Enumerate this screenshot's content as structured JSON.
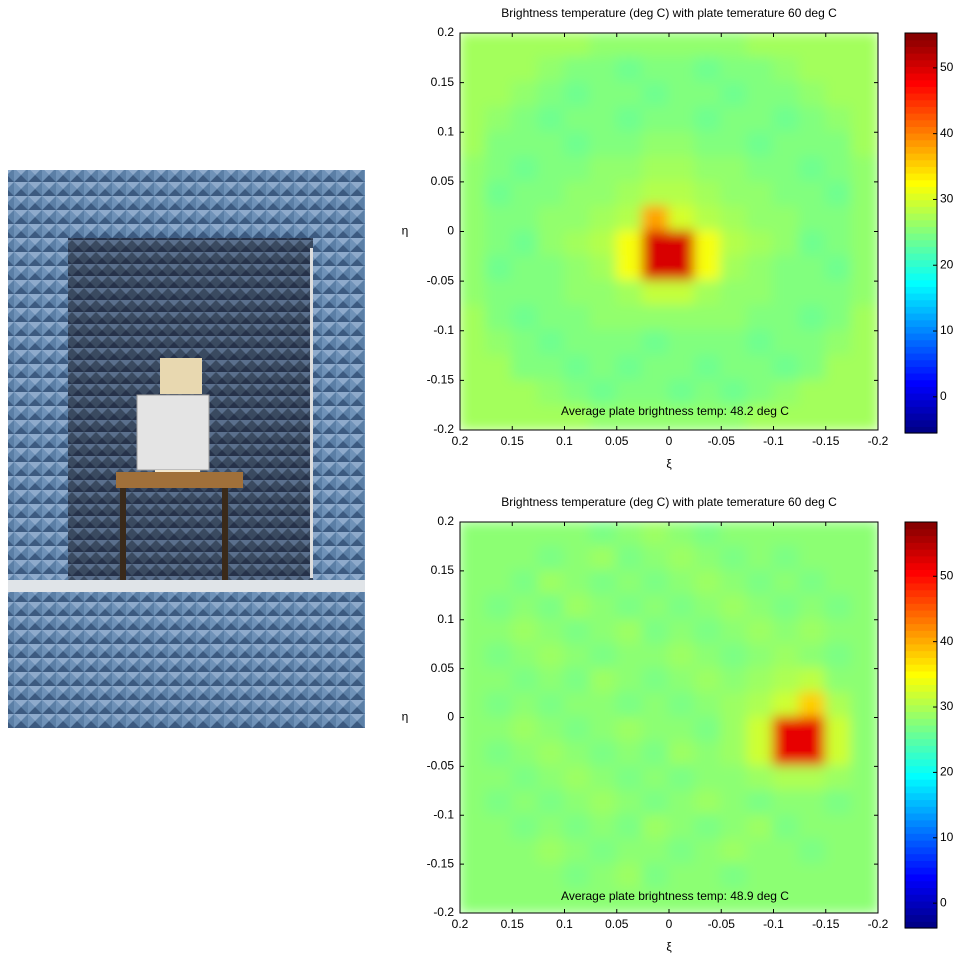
{
  "chart_data": [
    {
      "type": "heatmap",
      "title": "Brightness temperature (deg C) with plate temerature 60 deg C",
      "x_label": "ξ",
      "y_label": "η",
      "annotation": "Average plate brightness temp: 48.2 deg C",
      "xlim": [
        0.2,
        -0.2
      ],
      "ylim": [
        -0.2,
        0.2
      ],
      "xticks": [
        0.2,
        0.15,
        0.1,
        0.05,
        0,
        -0.05,
        -0.1,
        -0.15,
        -0.2
      ],
      "yticks": [
        -0.2,
        -0.15,
        -0.1,
        -0.05,
        0,
        0.05,
        0.1,
        0.15,
        0.2
      ],
      "colormap": "jet",
      "clim": [
        -5.5,
        55.3
      ],
      "cticks": [
        0,
        10,
        20,
        30,
        40,
        50
      ],
      "x": [
        0.1875,
        0.1625,
        0.1375,
        0.1125,
        0.0875,
        0.0625,
        0.0375,
        0.0125,
        -0.0125,
        -0.0375,
        -0.0625,
        -0.0875,
        -0.1125,
        -0.1375,
        -0.1625,
        -0.1875
      ],
      "y": [
        0.1875,
        0.1625,
        0.1375,
        0.1125,
        0.0875,
        0.0625,
        0.0375,
        0.0125,
        -0.0125,
        -0.0375,
        -0.0625,
        -0.0875,
        -0.1125,
        -0.1375,
        -0.1625,
        -0.1875
      ],
      "z": [
        [
          27,
          27,
          27,
          27,
          27,
          26,
          26,
          26,
          26,
          26,
          26,
          27,
          27,
          27,
          27,
          27
        ],
        [
          27,
          27,
          27,
          26,
          25,
          25,
          24,
          25,
          25,
          24,
          25,
          25,
          26,
          27,
          27,
          27
        ],
        [
          27,
          27,
          26,
          25,
          24,
          25,
          25,
          24,
          25,
          25,
          24,
          25,
          25,
          26,
          27,
          27
        ],
        [
          27,
          26,
          25,
          24,
          25,
          25,
          24,
          25,
          25,
          24,
          25,
          25,
          24,
          25,
          26,
          27
        ],
        [
          27,
          25,
          25,
          25,
          24,
          25,
          25,
          26,
          26,
          25,
          25,
          24,
          25,
          25,
          25,
          27
        ],
        [
          26,
          25,
          24,
          25,
          25,
          26,
          26,
          27,
          27,
          26,
          26,
          25,
          25,
          24,
          25,
          26
        ],
        [
          26,
          24,
          25,
          25,
          26,
          26,
          27,
          28,
          28,
          27,
          26,
          26,
          25,
          25,
          24,
          26
        ],
        [
          26,
          25,
          25,
          26,
          26,
          27,
          28,
          38,
          30,
          28,
          27,
          26,
          26,
          25,
          25,
          26
        ],
        [
          26,
          25,
          24,
          26,
          27,
          28,
          32,
          50,
          50,
          32,
          28,
          27,
          26,
          24,
          25,
          26
        ],
        [
          26,
          24,
          25,
          25,
          26,
          27,
          32,
          50,
          50,
          32,
          27,
          26,
          25,
          25,
          24,
          26
        ],
        [
          26,
          25,
          25,
          25,
          26,
          26,
          27,
          29,
          29,
          27,
          26,
          26,
          25,
          25,
          25,
          26
        ],
        [
          27,
          25,
          24,
          25,
          25,
          26,
          26,
          26,
          26,
          26,
          26,
          25,
          25,
          24,
          25,
          27
        ],
        [
          27,
          26,
          25,
          24,
          25,
          25,
          25,
          24,
          25,
          25,
          25,
          24,
          25,
          25,
          26,
          27
        ],
        [
          27,
          27,
          25,
          25,
          24,
          25,
          24,
          25,
          25,
          24,
          25,
          25,
          24,
          25,
          27,
          27
        ],
        [
          27,
          27,
          27,
          26,
          25,
          24,
          25,
          25,
          24,
          25,
          24,
          25,
          26,
          27,
          27,
          27
        ],
        [
          27,
          27,
          27,
          27,
          27,
          26,
          26,
          26,
          26,
          26,
          26,
          27,
          27,
          27,
          27,
          27
        ]
      ]
    },
    {
      "type": "heatmap",
      "title": "Brightness temperature (deg C) with plate temerature 60 deg C",
      "x_label": "ξ",
      "y_label": "η",
      "annotation": "Average plate brightness temp: 48.9 deg C",
      "xlim": [
        0.2,
        -0.2
      ],
      "ylim": [
        -0.2,
        0.2
      ],
      "xticks": [
        0.2,
        0.15,
        0.1,
        0.05,
        0,
        -0.05,
        -0.1,
        -0.15,
        -0.2
      ],
      "yticks": [
        -0.2,
        -0.15,
        -0.1,
        -0.05,
        0,
        0.05,
        0.1,
        0.15,
        0.2
      ],
      "colormap": "jet",
      "clim": [
        -3.8,
        58.3
      ],
      "cticks": [
        0,
        10,
        20,
        30,
        40,
        50
      ],
      "x": [
        0.1875,
        0.1625,
        0.1375,
        0.1125,
        0.0875,
        0.0625,
        0.0375,
        0.0125,
        -0.0125,
        -0.0375,
        -0.0625,
        -0.0875,
        -0.1125,
        -0.1375,
        -0.1625,
        -0.1875
      ],
      "y": [
        0.1875,
        0.1625,
        0.1375,
        0.1125,
        0.0875,
        0.0625,
        0.0375,
        0.0125,
        -0.0125,
        -0.0375,
        -0.0625,
        -0.0875,
        -0.1125,
        -0.1375,
        -0.1625,
        -0.1875
      ],
      "z": [
        [
          28,
          28,
          28,
          28,
          28,
          27,
          28,
          29,
          28,
          27,
          28,
          28,
          28,
          28,
          28,
          28
        ],
        [
          28,
          28,
          28,
          27,
          28,
          29,
          27,
          28,
          29,
          28,
          27,
          28,
          27,
          28,
          28,
          28
        ],
        [
          28,
          28,
          27,
          29,
          28,
          27,
          28,
          27,
          28,
          29,
          28,
          27,
          28,
          27,
          28,
          28
        ],
        [
          28,
          27,
          28,
          27,
          29,
          28,
          27,
          28,
          27,
          28,
          29,
          28,
          27,
          28,
          27,
          28
        ],
        [
          28,
          28,
          29,
          28,
          27,
          28,
          29,
          27,
          28,
          27,
          28,
          29,
          28,
          29,
          28,
          28
        ],
        [
          28,
          27,
          28,
          29,
          28,
          27,
          28,
          28,
          29,
          28,
          27,
          28,
          29,
          28,
          27,
          28
        ],
        [
          28,
          28,
          27,
          28,
          27,
          29,
          28,
          27,
          28,
          29,
          28,
          29,
          30,
          31,
          28,
          28
        ],
        [
          28,
          27,
          28,
          27,
          28,
          28,
          27,
          28,
          27,
          28,
          29,
          30,
          32,
          38,
          30,
          28
        ],
        [
          28,
          28,
          29,
          28,
          27,
          28,
          29,
          28,
          28,
          27,
          29,
          32,
          52,
          52,
          32,
          28
        ],
        [
          28,
          27,
          28,
          29,
          28,
          27,
          28,
          27,
          29,
          28,
          29,
          32,
          52,
          52,
          32,
          28
        ],
        [
          28,
          28,
          27,
          28,
          29,
          28,
          27,
          28,
          27,
          28,
          28,
          29,
          30,
          30,
          29,
          28
        ],
        [
          28,
          27,
          28,
          27,
          28,
          29,
          28,
          27,
          28,
          29,
          28,
          27,
          28,
          28,
          27,
          28
        ],
        [
          28,
          28,
          27,
          28,
          27,
          28,
          27,
          29,
          28,
          27,
          28,
          29,
          27,
          28,
          28,
          28
        ],
        [
          28,
          28,
          28,
          29,
          28,
          27,
          28,
          28,
          27,
          28,
          29,
          28,
          28,
          27,
          28,
          28
        ],
        [
          28,
          28,
          28,
          28,
          27,
          28,
          29,
          27,
          28,
          28,
          27,
          28,
          28,
          28,
          28,
          28
        ],
        [
          28,
          28,
          28,
          28,
          28,
          28,
          28,
          28,
          28,
          28,
          28,
          28,
          28,
          28,
          28,
          28
        ]
      ]
    }
  ]
}
